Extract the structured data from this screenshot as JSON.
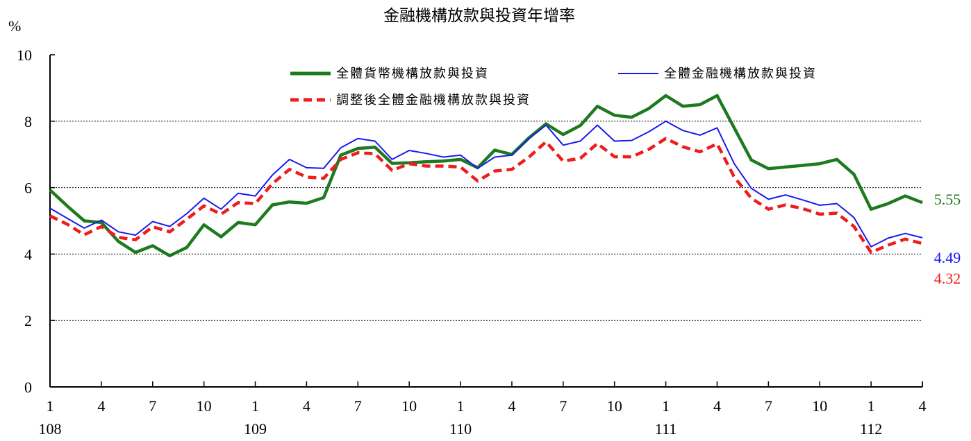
{
  "chart_data": {
    "type": "line",
    "title": "金融機構放款與投資年增率",
    "ylabel": "%",
    "ylim": [
      0,
      10
    ],
    "yticks": [
      0,
      2,
      4,
      6,
      8,
      10
    ],
    "grid": "horizontal dotted",
    "legend_position": "top-inside",
    "x_month_labels": [
      "1",
      "4",
      "7",
      "10",
      "1",
      "4",
      "7",
      "10",
      "1",
      "4",
      "7",
      "10",
      "1",
      "4",
      "7",
      "10",
      "1",
      "4"
    ],
    "x_year_labels": [
      "108",
      "109",
      "110",
      "111",
      "112"
    ],
    "series": [
      {
        "name": "全體貨幣機構放款與投資",
        "color": "#1e7a1e",
        "style": "solid-thick",
        "end_label": "5.55",
        "values": [
          5.93,
          5.45,
          5.0,
          4.95,
          4.38,
          4.05,
          4.25,
          3.95,
          4.2,
          4.88,
          4.52,
          4.95,
          4.88,
          5.48,
          5.57,
          5.53,
          5.7,
          6.98,
          7.18,
          7.22,
          6.73,
          6.75,
          6.78,
          6.8,
          6.85,
          6.6,
          7.13,
          7.0,
          7.5,
          7.92,
          7.6,
          7.87,
          8.45,
          8.18,
          8.12,
          8.38,
          8.77,
          8.45,
          8.5,
          8.77,
          7.8,
          6.83,
          6.57,
          6.62,
          6.67,
          6.72,
          6.85,
          6.4,
          5.35,
          5.52,
          5.75,
          5.55
        ]
      },
      {
        "name": "全體金融機構放款與投資",
        "color": "#1a1af0",
        "style": "solid-thin",
        "end_label": "4.49",
        "values": [
          5.38,
          5.08,
          4.78,
          5.02,
          4.67,
          4.57,
          4.98,
          4.83,
          5.22,
          5.68,
          5.35,
          5.83,
          5.75,
          6.38,
          6.85,
          6.6,
          6.58,
          7.2,
          7.48,
          7.4,
          6.85,
          7.12,
          7.03,
          6.92,
          6.98,
          6.58,
          6.92,
          6.98,
          7.48,
          7.88,
          7.28,
          7.4,
          7.88,
          7.4,
          7.42,
          7.68,
          8.0,
          7.72,
          7.58,
          7.8,
          6.72,
          5.98,
          5.65,
          5.78,
          5.63,
          5.47,
          5.52,
          5.1,
          4.22,
          4.48,
          4.62,
          4.49
        ]
      },
      {
        "name": "調整後全體金融機構放款與投資",
        "color": "#ee1c1c",
        "style": "dashed",
        "end_label": "4.32",
        "values": [
          5.15,
          4.9,
          4.58,
          4.83,
          4.5,
          4.43,
          4.82,
          4.67,
          5.05,
          5.45,
          5.2,
          5.55,
          5.52,
          6.12,
          6.55,
          6.32,
          6.28,
          6.85,
          7.05,
          7.02,
          6.52,
          6.72,
          6.65,
          6.65,
          6.62,
          6.2,
          6.5,
          6.55,
          6.92,
          7.38,
          6.8,
          6.88,
          7.33,
          6.93,
          6.93,
          7.15,
          7.48,
          7.23,
          7.08,
          7.32,
          6.32,
          5.68,
          5.35,
          5.48,
          5.37,
          5.2,
          5.23,
          4.83,
          4.05,
          4.27,
          4.45,
          4.32
        ]
      }
    ]
  }
}
